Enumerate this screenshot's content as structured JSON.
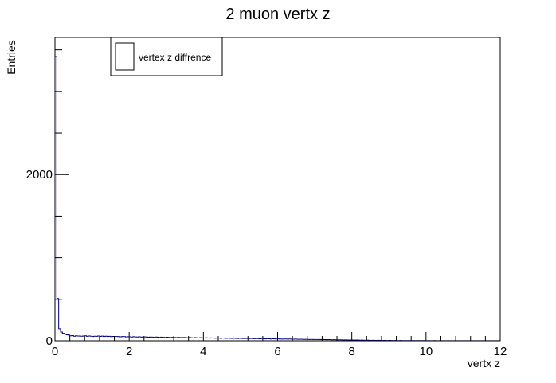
{
  "colors": {
    "background": "#ffffff",
    "frame": "#000000",
    "series": "#000080"
  },
  "chart_data": {
    "type": "bar",
    "title": "2 muon vertx z",
    "xlabel": "vertx z",
    "ylabel": "Entries",
    "xlim": [
      0,
      12
    ],
    "ylim": [
      0,
      3650
    ],
    "x_ticks": [
      "0",
      "2",
      "4",
      "6",
      "8",
      "10",
      "12"
    ],
    "y_ticks": [
      "0",
      "2000"
    ],
    "grid": false,
    "legend": {
      "position": "top-left",
      "entries": [
        "vertex z diffrence"
      ]
    },
    "series": [
      {
        "name": "vertex z diffrence",
        "bin_width": 0.05,
        "values": [
          3420,
          510,
          145,
          105,
          90,
          80,
          72,
          68,
          60,
          62,
          55,
          60,
          58,
          56,
          55,
          58,
          60,
          54,
          57,
          55,
          52,
          55,
          54,
          58,
          53,
          56,
          52,
          55,
          52,
          54,
          50,
          53,
          51,
          52,
          50,
          48,
          52,
          50,
          47,
          49,
          48,
          46,
          49,
          47,
          45,
          48,
          46,
          44,
          47,
          45,
          43,
          46,
          44,
          42,
          45,
          43,
          41,
          44,
          42,
          40,
          43,
          41,
          39,
          42,
          40,
          38,
          41,
          39,
          37,
          40,
          38,
          36,
          39,
          37,
          35,
          38,
          36,
          34,
          37,
          35,
          33,
          36,
          34,
          32,
          35,
          33,
          31,
          34,
          32,
          30,
          33,
          31,
          30,
          32,
          30,
          29,
          31,
          29,
          28,
          30,
          29,
          27,
          29,
          28,
          26,
          28,
          27,
          25,
          27,
          26,
          24,
          26,
          25,
          23,
          25,
          24,
          22,
          24,
          23,
          21,
          23,
          22,
          20,
          22,
          21,
          20,
          21,
          20,
          19,
          20,
          19,
          18,
          19,
          18,
          17,
          18,
          17,
          16,
          17,
          16,
          15,
          16,
          15,
          14,
          15,
          14,
          13,
          14,
          13,
          12,
          13,
          12,
          11,
          12,
          11,
          10,
          11,
          10,
          9,
          10,
          9,
          8,
          9,
          8,
          7,
          8,
          7,
          6,
          7,
          6,
          5,
          6,
          5,
          5,
          6,
          5,
          4,
          5,
          4,
          4,
          5,
          4,
          3,
          4,
          3,
          3,
          4,
          3,
          2,
          3,
          2,
          2,
          3,
          2,
          2,
          2,
          2,
          1,
          2,
          1,
          1,
          2,
          1,
          1,
          2,
          1,
          1,
          1,
          1,
          1,
          1,
          1,
          1,
          1,
          1,
          1,
          1,
          1,
          1,
          1,
          1,
          1,
          1,
          1,
          1,
          1,
          1,
          1,
          1,
          1,
          1,
          1,
          1,
          1,
          1,
          1,
          1,
          1,
          1,
          1
        ]
      }
    ]
  }
}
